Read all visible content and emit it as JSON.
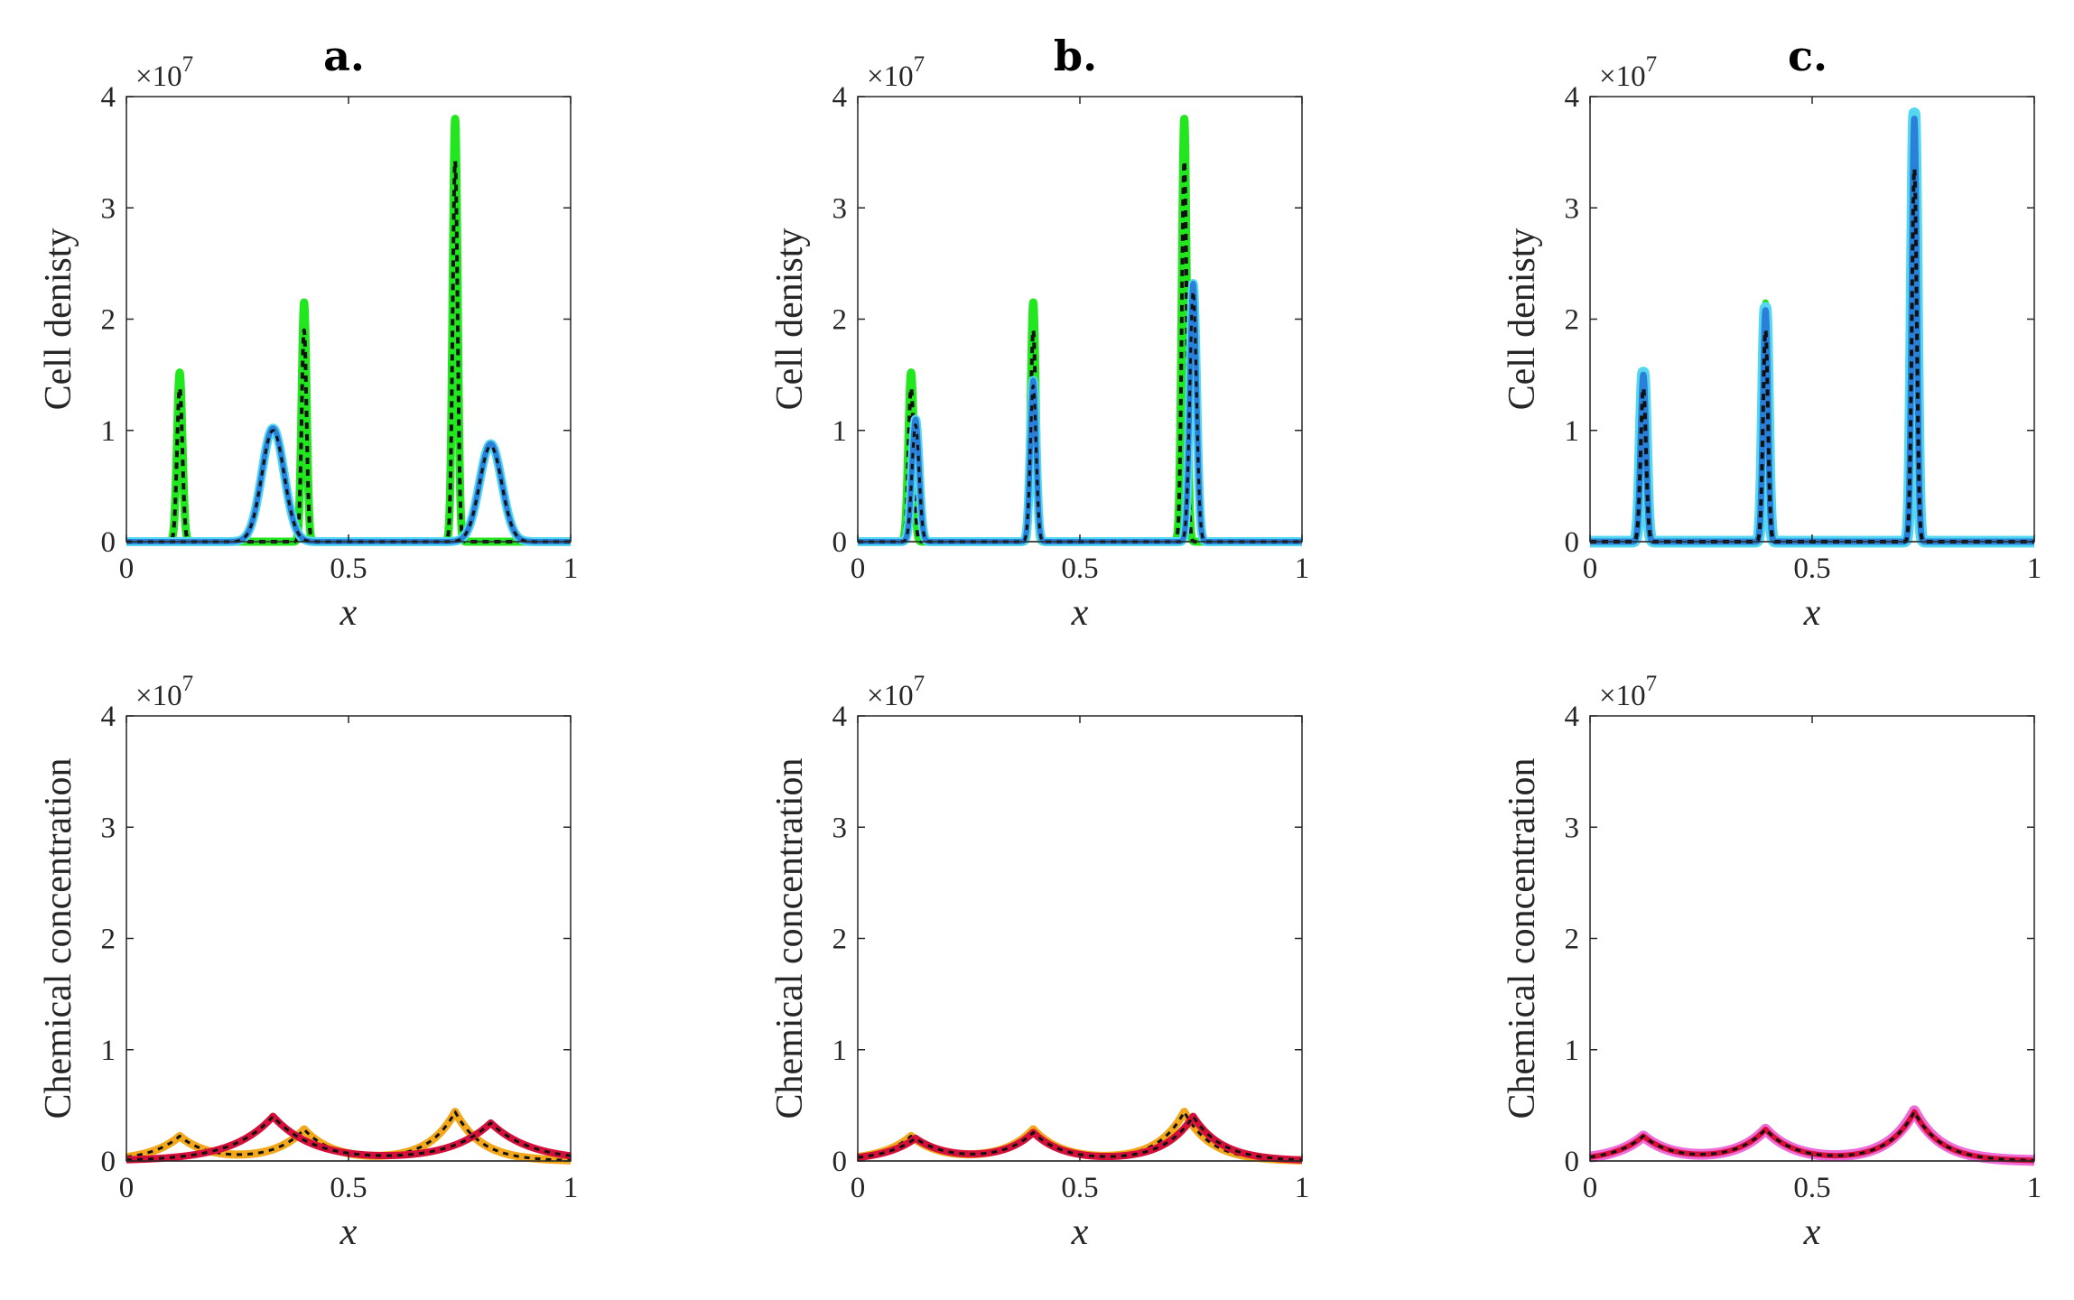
{
  "figure_title": "",
  "chart_data": [
    {
      "id": "a-top",
      "type": "line",
      "panel_label": "a.",
      "xlabel": "x",
      "ylabel": "Cell denisty",
      "y_multiplier": "×10",
      "y_exponent": "7",
      "xlim": [
        0,
        1
      ],
      "ylim": [
        0,
        4
      ],
      "xticks": [
        0,
        0.5,
        1
      ],
      "xtick_labels": [
        "0",
        "0.5",
        "1"
      ],
      "yticks": [
        0,
        1,
        2,
        3,
        4
      ],
      "ytick_labels": [
        "0",
        "1",
        "2",
        "3",
        "4"
      ],
      "series": [
        {
          "name": "green",
          "color": "#22e61e",
          "width": 9,
          "dash": "",
          "peaks": [
            [
              0.12,
              1.52,
              0.006
            ],
            [
              0.4,
              2.15,
              0.0055
            ],
            [
              0.74,
              3.8,
              0.0055
            ]
          ]
        },
        {
          "name": "black-dash-1",
          "color": "#111111",
          "width": 4,
          "dash": "7,6",
          "peaks": [
            [
              0.12,
              1.38,
              0.006
            ],
            [
              0.4,
              1.9,
              0.0055
            ],
            [
              0.74,
              3.42,
              0.0055
            ]
          ]
        },
        {
          "name": "light-blue",
          "color": "#54d8f2",
          "width": 10,
          "dash": "",
          "peaks": [
            [
              0.33,
              1.02,
              0.025
            ],
            [
              0.82,
              0.88,
              0.025
            ]
          ]
        },
        {
          "name": "blue",
          "color": "#2a7fd9",
          "width": 6,
          "dash": "",
          "peaks": [
            [
              0.33,
              1.02,
              0.025
            ],
            [
              0.82,
              0.88,
              0.025
            ]
          ]
        },
        {
          "name": "black-dash-2",
          "color": "#111111",
          "width": 3,
          "dash": "6,6",
          "peaks": [
            [
              0.33,
              1.0,
              0.025
            ],
            [
              0.82,
              0.86,
              0.025
            ]
          ]
        }
      ]
    },
    {
      "id": "b-top",
      "type": "line",
      "panel_label": "b.",
      "xlabel": "x",
      "ylabel": "Cell denisty",
      "y_multiplier": "×10",
      "y_exponent": "7",
      "xlim": [
        0,
        1
      ],
      "ylim": [
        0,
        4
      ],
      "xticks": [
        0,
        0.5,
        1
      ],
      "xtick_labels": [
        "0",
        "0.5",
        "1"
      ],
      "yticks": [
        0,
        1,
        2,
        3,
        4
      ],
      "ytick_labels": [
        "0",
        "1",
        "2",
        "3",
        "4"
      ],
      "series": [
        {
          "name": "green",
          "color": "#22e61e",
          "width": 9,
          "dash": "",
          "peaks": [
            [
              0.12,
              1.52,
              0.006
            ],
            [
              0.395,
              2.15,
              0.0055
            ],
            [
              0.735,
              3.8,
              0.0055
            ]
          ]
        },
        {
          "name": "black-dash-1",
          "color": "#111111",
          "width": 4,
          "dash": "7,6",
          "peaks": [
            [
              0.12,
              1.38,
              0.006
            ],
            [
              0.395,
              1.9,
              0.0055
            ],
            [
              0.735,
              3.42,
              0.0055
            ]
          ]
        },
        {
          "name": "light-blue",
          "color": "#54d8f2",
          "width": 10,
          "dash": "",
          "peaks": [
            [
              0.13,
              1.1,
              0.008
            ],
            [
              0.395,
              1.45,
              0.0065
            ],
            [
              0.755,
              2.32,
              0.0075
            ]
          ]
        },
        {
          "name": "blue",
          "color": "#2a7fd9",
          "width": 6,
          "dash": "",
          "peaks": [
            [
              0.13,
              1.1,
              0.008
            ],
            [
              0.395,
              1.45,
              0.0065
            ],
            [
              0.755,
              2.32,
              0.0075
            ]
          ]
        },
        {
          "name": "black-dash-2",
          "color": "#111111",
          "width": 3,
          "dash": "6,6",
          "peaks": [
            [
              0.13,
              1.05,
              0.008
            ],
            [
              0.395,
              1.4,
              0.0065
            ],
            [
              0.755,
              2.25,
              0.0075
            ]
          ]
        }
      ]
    },
    {
      "id": "c-top",
      "type": "line",
      "panel_label": "c.",
      "xlabel": "x",
      "ylabel": "Cell denisty",
      "y_multiplier": "×10",
      "y_exponent": "7",
      "xlim": [
        0,
        1
      ],
      "ylim": [
        0,
        4
      ],
      "xticks": [
        0,
        0.5,
        1
      ],
      "xtick_labels": [
        "0",
        "0.5",
        "1"
      ],
      "yticks": [
        0,
        1,
        2,
        3,
        4
      ],
      "ytick_labels": [
        "0",
        "1",
        "2",
        "3",
        "4"
      ],
      "series": [
        {
          "name": "green",
          "color": "#22e61e",
          "width": 7,
          "dash": "",
          "peaks": [
            [
              0.12,
              1.5,
              0.006
            ],
            [
              0.395,
              2.15,
              0.0055
            ],
            [
              0.73,
              3.8,
              0.0055
            ]
          ]
        },
        {
          "name": "light-blue",
          "color": "#54d8f2",
          "width": 13,
          "dash": "",
          "peaks": [
            [
              0.12,
              1.52,
              0.006
            ],
            [
              0.395,
              2.1,
              0.0055
            ],
            [
              0.73,
              3.85,
              0.0055
            ]
          ]
        },
        {
          "name": "blue",
          "color": "#2a7fd9",
          "width": 7,
          "dash": "",
          "peaks": [
            [
              0.12,
              1.5,
              0.006
            ],
            [
              0.395,
              2.08,
              0.0055
            ],
            [
              0.73,
              3.8,
              0.0055
            ]
          ]
        },
        {
          "name": "black-dash",
          "color": "#111111",
          "width": 4,
          "dash": "7,6",
          "peaks": [
            [
              0.12,
              1.38,
              0.006
            ],
            [
              0.395,
              1.9,
              0.0055
            ],
            [
              0.73,
              3.35,
              0.0055
            ]
          ]
        }
      ]
    },
    {
      "id": "a-bottom",
      "type": "line",
      "panel_label": "",
      "xlabel": "x",
      "ylabel": "Chemical concentration",
      "y_multiplier": "×10",
      "y_exponent": "7",
      "xlim": [
        0,
        1
      ],
      "ylim": [
        0,
        4
      ],
      "xticks": [
        0,
        0.5,
        1
      ],
      "xtick_labels": [
        "0",
        "0.5",
        "1"
      ],
      "yticks": [
        0,
        1,
        2,
        3,
        4
      ],
      "ytick_labels": [
        "0",
        "1",
        "2",
        "3",
        "4"
      ],
      "series": [
        {
          "name": "orange",
          "color": "#f2a81a",
          "width": 9,
          "dash": "",
          "cusps": [
            [
              0.12,
              0.22,
              0.065
            ],
            [
              0.4,
              0.28,
              0.065
            ],
            [
              0.74,
              0.44,
              0.06
            ]
          ]
        },
        {
          "name": "black-dash-1",
          "color": "#111111",
          "width": 3,
          "dash": "6,6",
          "cusps": [
            [
              0.12,
              0.22,
              0.065
            ],
            [
              0.4,
              0.28,
              0.065
            ],
            [
              0.74,
              0.44,
              0.06
            ]
          ]
        },
        {
          "name": "red",
          "color": "#d4103a",
          "width": 8,
          "dash": "",
          "cusps": [
            [
              0.33,
              0.4,
              0.09
            ],
            [
              0.82,
              0.34,
              0.09
            ]
          ]
        },
        {
          "name": "black-dash-2",
          "color": "#111111",
          "width": 3,
          "dash": "6,6",
          "cusps": [
            [
              0.33,
              0.4,
              0.09
            ],
            [
              0.82,
              0.34,
              0.09
            ]
          ]
        }
      ]
    },
    {
      "id": "b-bottom",
      "type": "line",
      "panel_label": "",
      "xlabel": "x",
      "ylabel": "Chemical concentration",
      "y_multiplier": "×10",
      "y_exponent": "7",
      "xlim": [
        0,
        1
      ],
      "ylim": [
        0,
        4
      ],
      "xticks": [
        0,
        0.5,
        1
      ],
      "xtick_labels": [
        "0",
        "0.5",
        "1"
      ],
      "yticks": [
        0,
        1,
        2,
        3,
        4
      ],
      "ytick_labels": [
        "0",
        "1",
        "2",
        "3",
        "4"
      ],
      "series": [
        {
          "name": "orange",
          "color": "#f2a81a",
          "width": 9,
          "dash": "",
          "cusps": [
            [
              0.12,
              0.22,
              0.065
            ],
            [
              0.395,
              0.28,
              0.065
            ],
            [
              0.735,
              0.44,
              0.06
            ]
          ]
        },
        {
          "name": "black-dash-1",
          "color": "#111111",
          "width": 3,
          "dash": "6,6",
          "cusps": [
            [
              0.12,
              0.22,
              0.065
            ],
            [
              0.395,
              0.28,
              0.065
            ],
            [
              0.735,
              0.44,
              0.06
            ]
          ]
        },
        {
          "name": "red",
          "color": "#d4103a",
          "width": 8,
          "dash": "",
          "cusps": [
            [
              0.13,
              0.2,
              0.07
            ],
            [
              0.395,
              0.25,
              0.065
            ],
            [
              0.755,
              0.4,
              0.065
            ]
          ]
        },
        {
          "name": "black-dash-2",
          "color": "#111111",
          "width": 3,
          "dash": "6,6",
          "cusps": [
            [
              0.13,
              0.2,
              0.07
            ],
            [
              0.395,
              0.25,
              0.065
            ],
            [
              0.755,
              0.4,
              0.065
            ]
          ]
        }
      ]
    },
    {
      "id": "c-bottom",
      "type": "line",
      "panel_label": "",
      "xlabel": "x",
      "ylabel": "Chemical concentration",
      "y_multiplier": "×10",
      "y_exponent": "7",
      "xlim": [
        0,
        1
      ],
      "ylim": [
        0,
        4
      ],
      "xticks": [
        0,
        0.5,
        1
      ],
      "xtick_labels": [
        "0",
        "0.5",
        "1"
      ],
      "yticks": [
        0,
        1,
        2,
        3,
        4
      ],
      "ytick_labels": [
        "0",
        "1",
        "2",
        "3",
        "4"
      ],
      "series": [
        {
          "name": "magenta",
          "color": "#ee6ad6",
          "width": 12,
          "dash": "",
          "cusps": [
            [
              0.12,
              0.22,
              0.065
            ],
            [
              0.395,
              0.28,
              0.065
            ],
            [
              0.73,
              0.45,
              0.06
            ]
          ]
        },
        {
          "name": "red",
          "color": "#d4103a",
          "width": 6,
          "dash": "",
          "cusps": [
            [
              0.12,
              0.22,
              0.065
            ],
            [
              0.395,
              0.28,
              0.065
            ],
            [
              0.73,
              0.44,
              0.06
            ]
          ]
        },
        {
          "name": "black-dash",
          "color": "#111111",
          "width": 3,
          "dash": "6,6",
          "cusps": [
            [
              0.12,
              0.22,
              0.065
            ],
            [
              0.395,
              0.28,
              0.065
            ],
            [
              0.73,
              0.44,
              0.06
            ]
          ]
        }
      ]
    }
  ]
}
